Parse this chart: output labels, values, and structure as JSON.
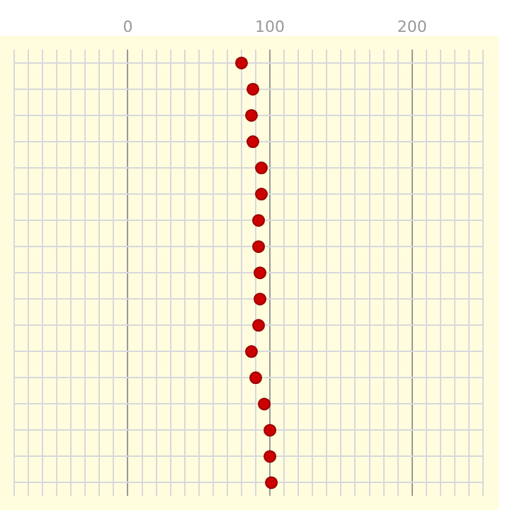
{
  "chart_data": {
    "type": "scatter",
    "orientation": "horizontal",
    "categories": [
      null,
      null,
      null,
      null,
      null,
      null,
      null,
      null,
      null,
      null,
      null,
      null,
      null,
      null,
      null,
      null,
      null
    ],
    "series": [
      {
        "color": "#cc0000",
        "values": [
          80,
          88,
          87,
          88,
          94,
          94,
          92,
          92,
          93,
          93,
          92,
          87,
          90,
          96,
          100,
          100,
          101
        ]
      }
    ],
    "xlim": [
      -80,
      250
    ],
    "xticks": [
      {
        "value": -80,
        "label": null
      },
      {
        "value": -70,
        "label": null
      },
      {
        "value": -60,
        "label": null
      },
      {
        "value": -50,
        "label": null
      },
      {
        "value": -40,
        "label": null
      },
      {
        "value": -30,
        "label": null
      },
      {
        "value": -20,
        "label": null
      },
      {
        "value": -10,
        "label": null
      },
      0,
      {
        "value": 10,
        "label": null
      },
      {
        "value": 20,
        "label": null
      },
      {
        "value": 30,
        "label": null
      },
      {
        "value": 40,
        "label": null
      },
      {
        "value": 50,
        "label": null
      },
      {
        "value": 60,
        "label": null
      },
      {
        "value": 70,
        "label": null
      },
      {
        "value": 80,
        "label": null
      },
      {
        "value": 90,
        "label": null
      },
      100,
      {
        "value": 110,
        "label": null
      },
      {
        "value": 120,
        "label": null
      },
      {
        "value": 130,
        "label": null
      },
      {
        "value": 140,
        "label": null
      },
      {
        "value": 150,
        "label": null
      },
      {
        "value": 160,
        "label": null
      },
      {
        "value": 170,
        "label": null
      },
      {
        "value": 180,
        "label": null
      },
      {
        "value": 190,
        "label": null
      },
      200,
      {
        "value": 210,
        "label": null
      },
      {
        "value": 220,
        "label": null
      },
      {
        "value": 230,
        "label": null
      },
      {
        "value": 240,
        "label": null
      },
      {
        "value": 250,
        "label": null
      }
    ],
    "grid": true,
    "legend": false,
    "marker": "circle"
  }
}
